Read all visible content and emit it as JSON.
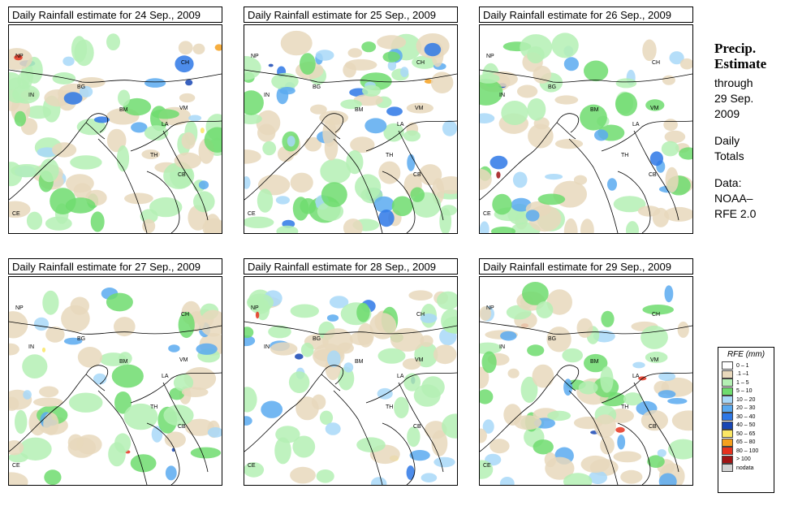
{
  "panels": [
    {
      "title": "Daily Rainfall estimate for  24 Sep., 2009",
      "intensity": 0.9
    },
    {
      "title": "Daily Rainfall estimate for  25 Sep., 2009",
      "intensity": 1.0
    },
    {
      "title": "Daily Rainfall estimate for  26 Sep., 2009",
      "intensity": 0.7
    },
    {
      "title": "Daily Rainfall estimate for  27 Sep., 2009",
      "intensity": 0.6
    },
    {
      "title": "Daily Rainfall estimate for  28 Sep., 2009",
      "intensity": 0.75
    },
    {
      "title": "Daily Rainfall estimate for  29 Sep., 2009",
      "intensity": 0.85
    }
  ],
  "map_labels": {
    "np": "NP",
    "ch": "CH",
    "in": "IN",
    "bg": "BG",
    "bm": "BM",
    "vm": "VM",
    "la": "LA",
    "th": "TH",
    "cb": "CB",
    "ce": "CE"
  },
  "side": {
    "heading1": "Precip.",
    "heading2": "Estimate",
    "through": "through",
    "date1": "29 Sep.",
    "date2": "2009",
    "daily": "Daily",
    "totals": "Totals",
    "data": "Data:",
    "source1": "NOAA–",
    "source2": "RFE 2.0"
  },
  "legend": {
    "title": "RFE (mm)",
    "items": [
      {
        "label": "0 – 1",
        "color": "#ffffff"
      },
      {
        "label": ".1 –1",
        "color": "#e8d8bc"
      },
      {
        "label": "1 – 5",
        "color": "#b4f0b4"
      },
      {
        "label": "5 – 10",
        "color": "#6edc6e"
      },
      {
        "label": "10 – 20",
        "color": "#a8d8f8"
      },
      {
        "label": "20 – 30",
        "color": "#5aaaf0"
      },
      {
        "label": "30 – 40",
        "color": "#2e78e6"
      },
      {
        "label": "40 – 50",
        "color": "#1846b4"
      },
      {
        "label": "50 – 65",
        "color": "#fae664"
      },
      {
        "label": "65 – 80",
        "color": "#f5a01e"
      },
      {
        "label": "80 – 100",
        "color": "#e6321e"
      },
      {
        "label": "> 100",
        "color": "#a01414"
      },
      {
        "label": "nodata",
        "color": "#d2d2d2"
      }
    ]
  }
}
